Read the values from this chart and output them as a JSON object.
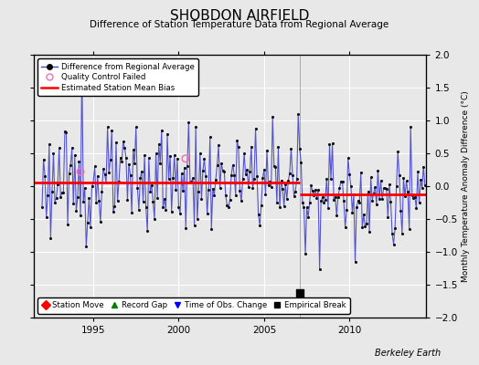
{
  "title": "SHOBDON AIRFIELD",
  "subtitle": "Difference of Station Temperature Data from Regional Average",
  "ylabel": "Monthly Temperature Anomaly Difference (°C)",
  "ylim": [
    -2,
    2
  ],
  "yticks": [
    -2,
    -1.5,
    -1,
    -0.5,
    0,
    0.5,
    1,
    1.5,
    2
  ],
  "xlim": [
    1991.5,
    2014.5
  ],
  "xticks": [
    1995,
    2000,
    2005,
    2010
  ],
  "background_color": "#e8e8e8",
  "plot_bg_color": "#e8e8e8",
  "grid_color": "#ffffff",
  "line_color": "#4444cc",
  "dot_color": "#111111",
  "bias1_y": 0.06,
  "bias1_x_start": 1991.5,
  "bias1_x_end": 2007.1,
  "bias2_y": -0.13,
  "bias2_x_start": 2007.1,
  "bias2_x_end": 2014.5,
  "empirical_break_x": 2007.1,
  "empirical_break_y": -1.62,
  "qc_fail_x1": 1994.25,
  "qc_fail_y1": 0.22,
  "qc_fail_x2": 2000.4,
  "qc_fail_y2": 0.42,
  "berkeley_earth_text": "Berkeley Earth",
  "legend1_entries": [
    "Difference from Regional Average",
    "Quality Control Failed",
    "Estimated Station Mean Bias"
  ],
  "legend2_entries": [
    "Station Move",
    "Record Gap",
    "Time of Obs. Change",
    "Empirical Break"
  ]
}
